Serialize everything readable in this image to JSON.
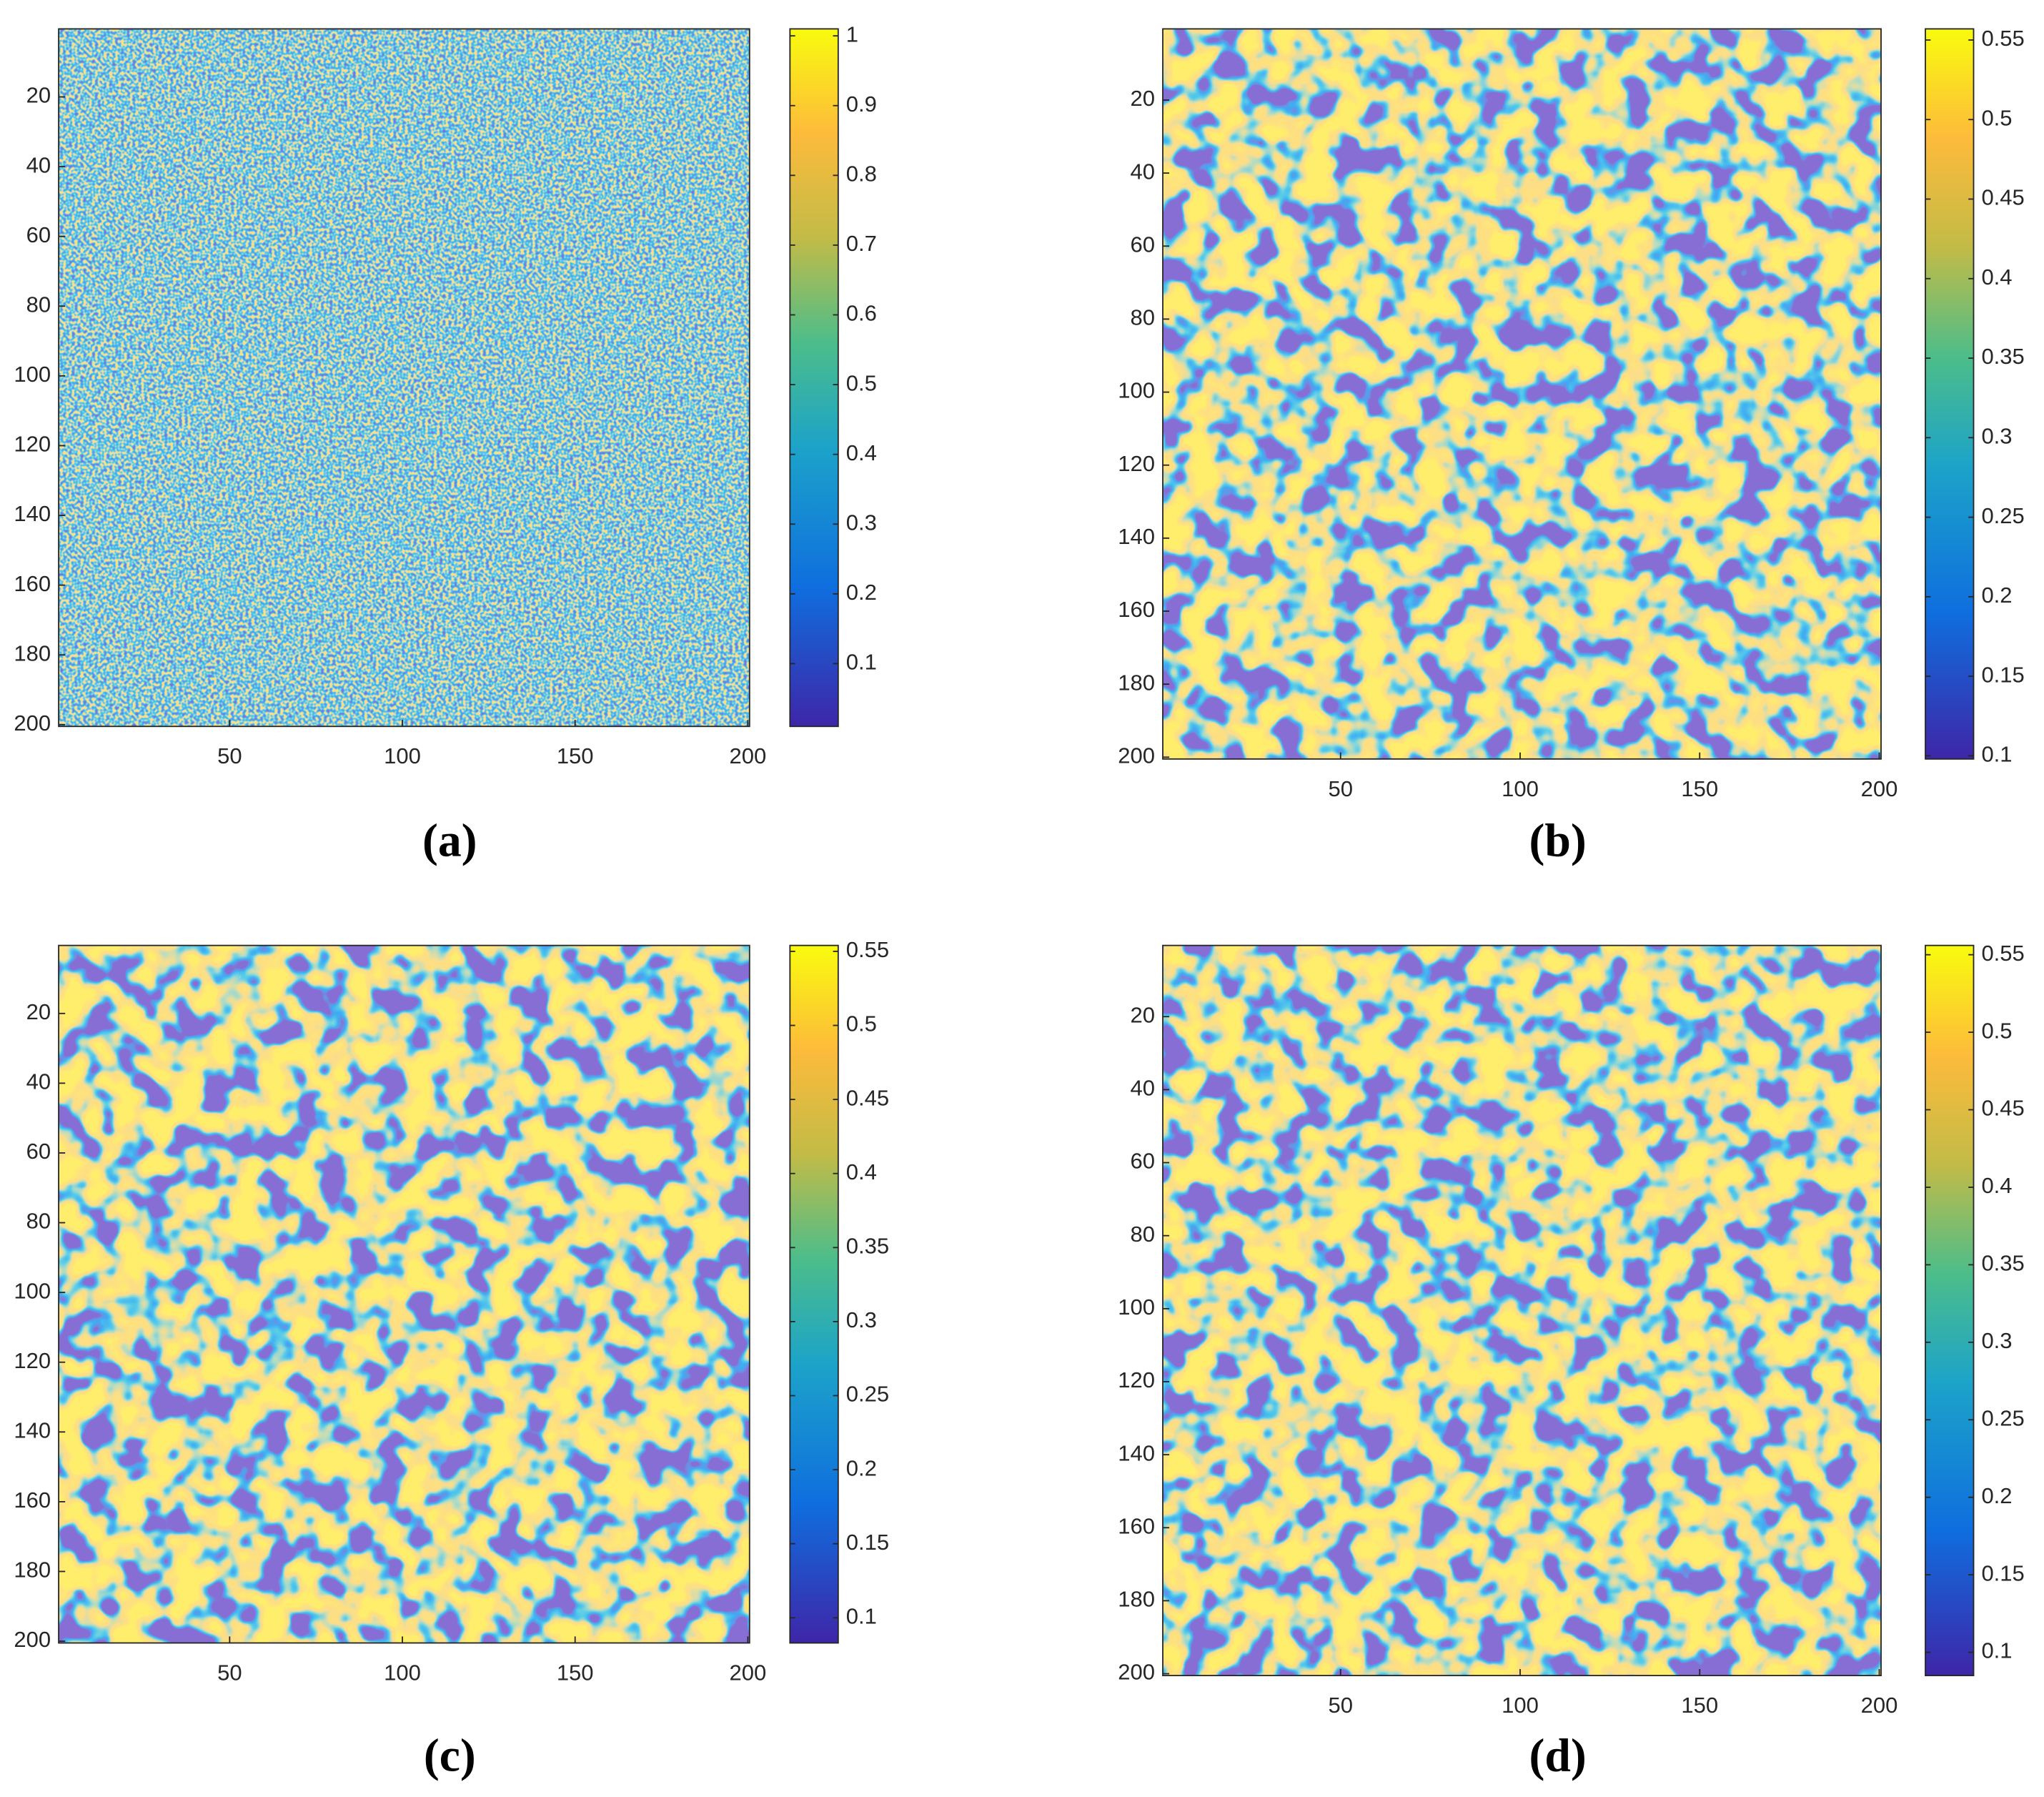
{
  "chart_data": [
    {
      "type": "heatmap",
      "label": "(a)",
      "xlim": [
        0.5,
        200.5
      ],
      "ylim": [
        0.5,
        200.5
      ],
      "xticks": [
        50,
        100,
        150,
        200
      ],
      "yticks": [
        20,
        40,
        60,
        80,
        100,
        120,
        140,
        160,
        180,
        200
      ],
      "clim": [
        0.01,
        1.01
      ],
      "cticks": [
        0.1,
        0.2,
        0.3,
        0.4,
        0.5,
        0.6,
        0.7,
        0.8,
        0.9,
        1
      ]
    },
    {
      "type": "heatmap",
      "label": "(b)",
      "xlim": [
        0.5,
        200.5
      ],
      "ylim": [
        0.5,
        200.5
      ],
      "xticks": [
        50,
        100,
        150,
        200
      ],
      "yticks": [
        20,
        40,
        60,
        80,
        100,
        120,
        140,
        160,
        180,
        200
      ],
      "clim": [
        0.098,
        0.557
      ],
      "cticks": [
        0.1,
        0.15,
        0.2,
        0.25,
        0.3,
        0.35,
        0.4,
        0.45,
        0.5,
        0.55
      ]
    },
    {
      "type": "heatmap",
      "label": "(c)",
      "xlim": [
        0.5,
        200.5
      ],
      "ylim": [
        0.5,
        200.5
      ],
      "xticks": [
        50,
        100,
        150,
        200
      ],
      "yticks": [
        20,
        40,
        60,
        80,
        100,
        120,
        140,
        160,
        180,
        200
      ],
      "clim": [
        0.083,
        0.554
      ],
      "cticks": [
        0.1,
        0.15,
        0.2,
        0.25,
        0.3,
        0.35,
        0.4,
        0.45,
        0.5,
        0.55
      ]
    },
    {
      "type": "heatmap",
      "label": "(d)",
      "xlim": [
        0.5,
        200.5
      ],
      "ylim": [
        0.5,
        200.5
      ],
      "xticks": [
        50,
        100,
        150,
        200
      ],
      "yticks": [
        20,
        40,
        60,
        80,
        100,
        120,
        140,
        160,
        180,
        200
      ],
      "clim": [
        0.085,
        0.556
      ],
      "cticks": [
        0.1,
        0.15,
        0.2,
        0.25,
        0.3,
        0.35,
        0.4,
        0.45,
        0.5,
        0.55
      ]
    }
  ]
}
